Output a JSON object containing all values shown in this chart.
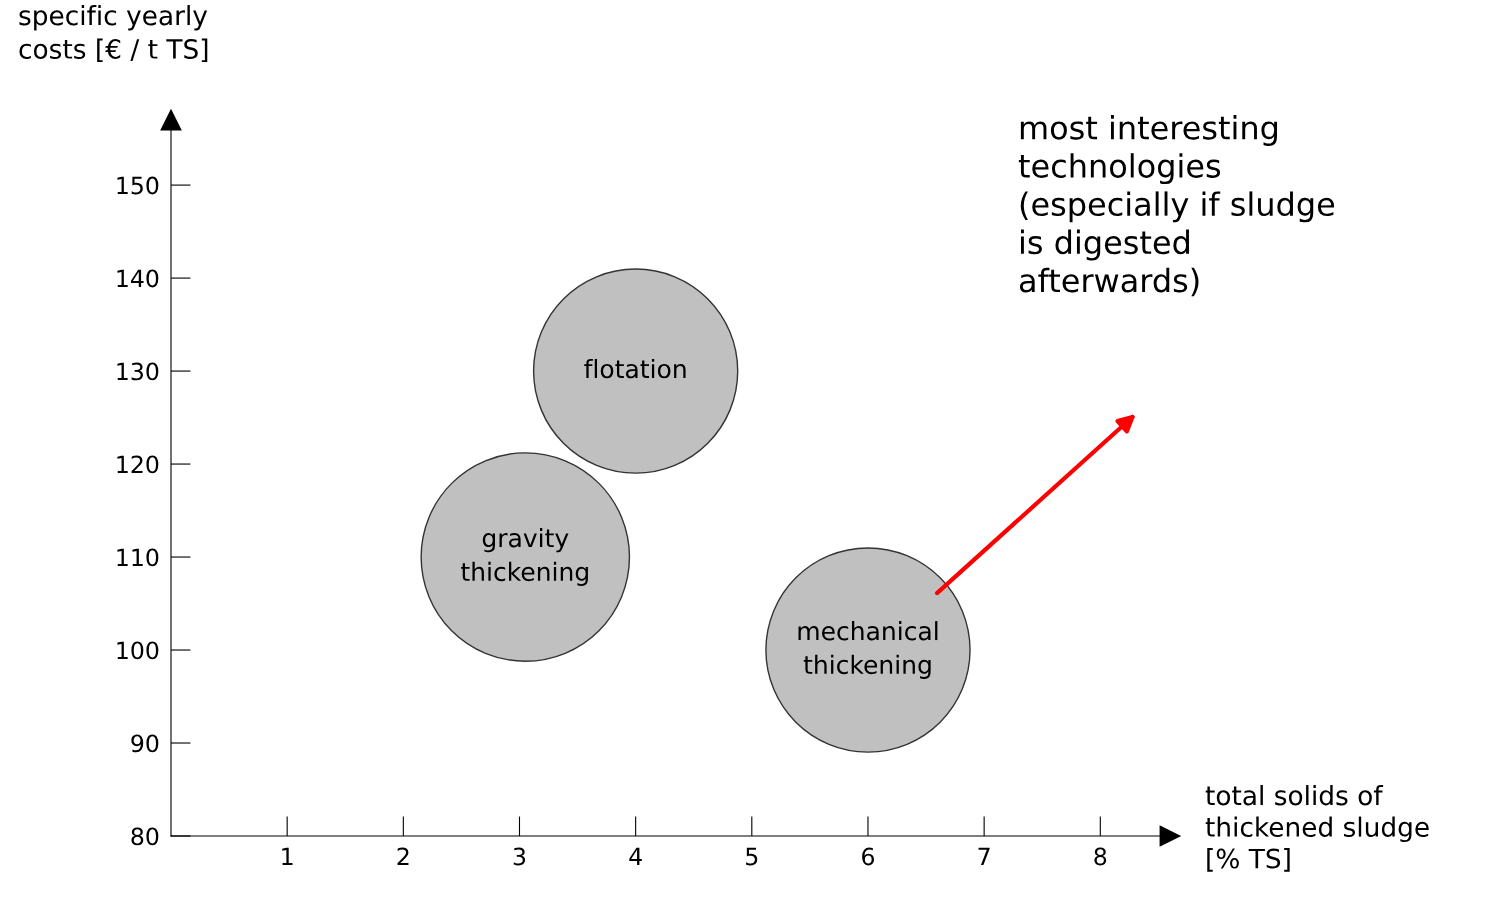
{
  "chart_data": {
    "type": "bubble",
    "xlabel": "total solids of\nthickened sludge\n[% TS]",
    "ylabel": "specific yearly\ncosts [€ / t TS]",
    "xlim": [
      0,
      8.6
    ],
    "ylim": [
      80,
      157
    ],
    "xticks": [
      1,
      2,
      3,
      4,
      5,
      6,
      7,
      8
    ],
    "yticks": [
      80,
      90,
      100,
      110,
      120,
      130,
      140,
      150
    ],
    "grid": false,
    "legend": false,
    "marker": "circle",
    "series": [
      {
        "name": "flotation",
        "color": "#c0c0c0",
        "x": [
          4
        ],
        "values": [
          130
        ],
        "sizes": [
          0.96
        ]
      },
      {
        "name": "gravity\nthickening",
        "color": "#c0c0c0",
        "x": [
          3.05
        ],
        "values": [
          110
        ],
        "sizes": [
          1
        ]
      },
      {
        "name": "mechanical\nthickening",
        "color": "#c0c0c0",
        "x": [
          6
        ],
        "values": [
          100
        ],
        "sizes": [
          0.96
        ]
      }
    ],
    "annotations": [
      "most interesting\ntechnologies\n(especially if sludge\nis digested\nafterwards)"
    ]
  }
}
